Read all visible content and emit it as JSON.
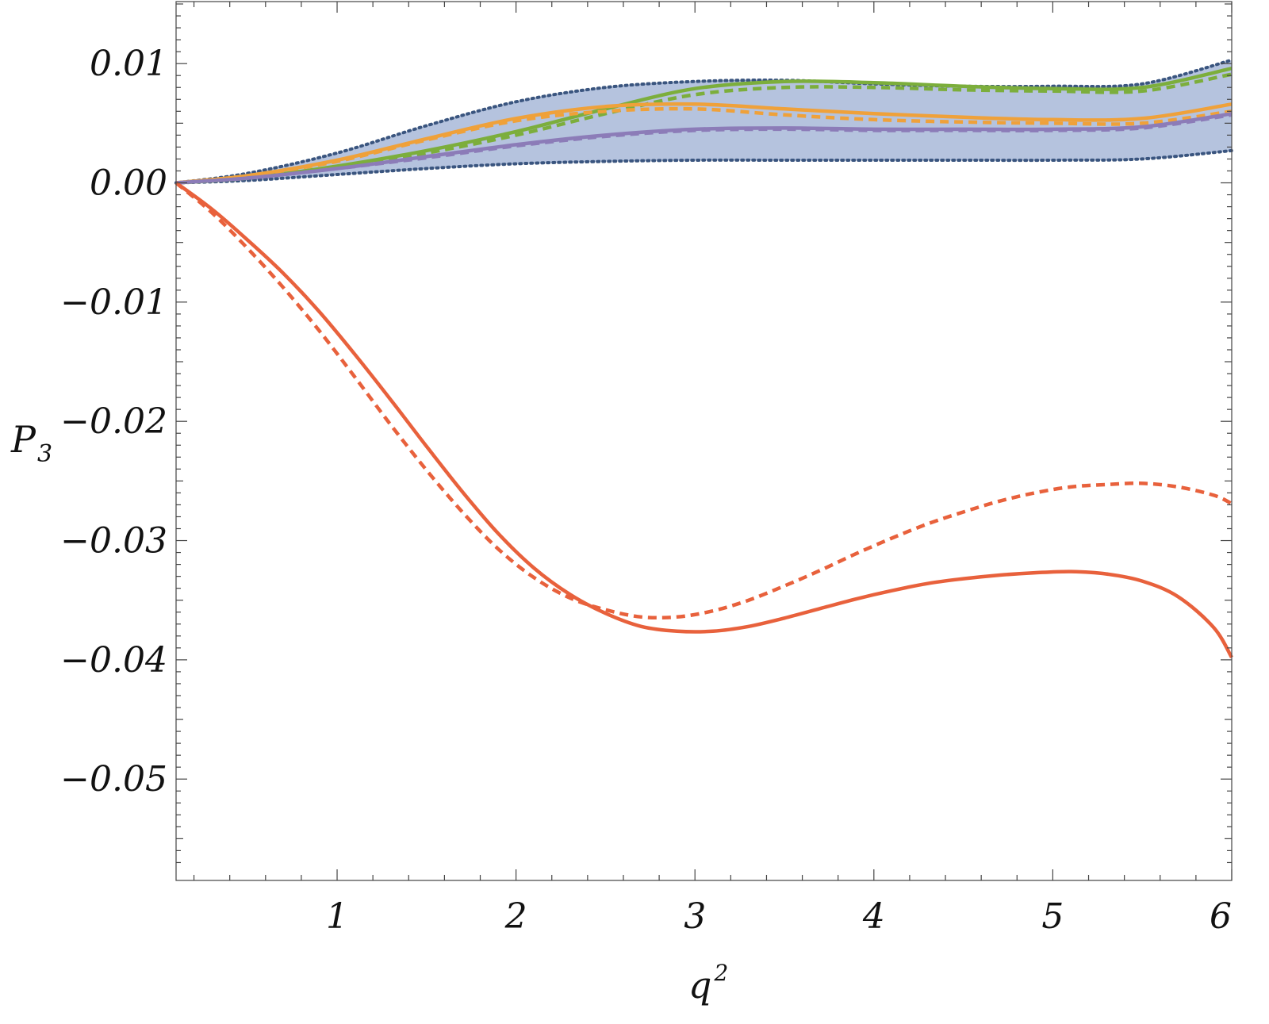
{
  "chart_data": {
    "type": "line",
    "xlabel": "q",
    "xlabel_sup": "2",
    "ylabel": "P",
    "ylabel_sub": "3",
    "xlim": [
      0.1,
      6.0
    ],
    "ylim": [
      -0.0585,
      0.0152
    ],
    "x_ticks": [
      1,
      2,
      3,
      4,
      5,
      6
    ],
    "x_tick_labels": [
      "1",
      "2",
      "3",
      "4",
      "5",
      "6"
    ],
    "y_ticks": [
      0.01,
      0.0,
      -0.01,
      -0.02,
      -0.03,
      -0.04,
      -0.05
    ],
    "y_tick_labels": [
      "0.01",
      "0.00",
      "−0.01",
      "−0.02",
      "−0.03",
      "−0.04",
      "−0.05"
    ],
    "grid": false,
    "band": {
      "color": "#b1c0dc",
      "edge_color": "#3a557f",
      "x": [
        0.1,
        0.5,
        1.0,
        1.5,
        2.0,
        2.5,
        3.0,
        3.5,
        4.0,
        4.5,
        5.0,
        5.5,
        6.0
      ],
      "upper": [
        0.0,
        0.0008,
        0.0025,
        0.0048,
        0.0068,
        0.008,
        0.0085,
        0.0086,
        0.0083,
        0.0081,
        0.0081,
        0.0083,
        0.0103
      ],
      "lower": [
        0.0,
        0.0002,
        0.0007,
        0.0012,
        0.0016,
        0.0018,
        0.0019,
        0.0019,
        0.0019,
        0.0019,
        0.0019,
        0.002,
        0.0027
      ]
    },
    "series": [
      {
        "color": "#7cae3c",
        "dash": "solid",
        "x": [
          0.1,
          0.5,
          1.0,
          1.5,
          2.0,
          2.5,
          3.0,
          3.5,
          4.0,
          4.5,
          5.0,
          5.5,
          6.0
        ],
        "y": [
          0.0,
          0.0004,
          0.0014,
          0.0027,
          0.0043,
          0.0062,
          0.0079,
          0.0085,
          0.0084,
          0.0081,
          0.0079,
          0.008,
          0.0096
        ]
      },
      {
        "color": "#7cae3c",
        "dash": "dashed",
        "x": [
          0.1,
          0.5,
          1.0,
          1.5,
          2.0,
          2.5,
          3.0,
          3.5,
          4.0,
          4.5,
          5.0,
          5.5,
          6.0
        ],
        "y": [
          0.0,
          0.0004,
          0.0013,
          0.0025,
          0.004,
          0.0058,
          0.0074,
          0.008,
          0.008,
          0.0078,
          0.0077,
          0.0077,
          0.0091
        ]
      },
      {
        "color": "#efa13a",
        "dash": "solid",
        "x": [
          0.1,
          0.5,
          1.0,
          1.5,
          2.0,
          2.5,
          3.0,
          3.5,
          4.0,
          4.5,
          5.0,
          5.5,
          6.0
        ],
        "y": [
          0.0,
          0.0006,
          0.0019,
          0.0037,
          0.0054,
          0.0064,
          0.0066,
          0.0062,
          0.0058,
          0.0055,
          0.0053,
          0.0054,
          0.0066
        ]
      },
      {
        "color": "#efa13a",
        "dash": "dashed",
        "x": [
          0.1,
          0.5,
          1.0,
          1.5,
          2.0,
          2.5,
          3.0,
          3.5,
          4.0,
          4.5,
          5.0,
          5.5,
          6.0
        ],
        "y": [
          0.0,
          0.0006,
          0.0018,
          0.0036,
          0.0052,
          0.006,
          0.0062,
          0.0057,
          0.0053,
          0.0051,
          0.005,
          0.005,
          0.006
        ]
      },
      {
        "color": "#8c7cb8",
        "dash": "solid",
        "x": [
          0.1,
          0.5,
          1.0,
          1.5,
          2.0,
          2.5,
          3.0,
          3.5,
          4.0,
          4.5,
          5.0,
          5.5,
          6.0
        ],
        "y": [
          0.0,
          0.0004,
          0.0012,
          0.0022,
          0.0032,
          0.004,
          0.0045,
          0.0046,
          0.0045,
          0.0045,
          0.0045,
          0.0047,
          0.0058
        ]
      },
      {
        "color": "#8c7cb8",
        "dash": "dashed",
        "x": [
          0.1,
          0.5,
          1.0,
          1.5,
          2.0,
          2.5,
          3.0,
          3.5,
          4.0,
          4.5,
          5.0,
          5.5,
          6.0
        ],
        "y": [
          0.0,
          0.0004,
          0.0012,
          0.0021,
          0.0031,
          0.0039,
          0.0044,
          0.0045,
          0.0044,
          0.0044,
          0.0044,
          0.0046,
          0.0057
        ]
      },
      {
        "color": "#e8613c",
        "dash": "solid",
        "x": [
          0.1,
          0.3,
          0.5,
          0.7,
          0.9,
          1.1,
          1.3,
          1.5,
          1.7,
          1.9,
          2.1,
          2.3,
          2.5,
          2.7,
          2.9,
          3.1,
          3.3,
          3.5,
          3.7,
          3.9,
          4.1,
          4.3,
          4.5,
          4.7,
          4.9,
          5.1,
          5.3,
          5.5,
          5.7,
          5.9,
          6.0
        ],
        "y": [
          0.0,
          -0.0022,
          -0.0048,
          -0.0076,
          -0.0108,
          -0.0144,
          -0.0182,
          -0.0221,
          -0.0259,
          -0.0294,
          -0.0323,
          -0.0345,
          -0.0361,
          -0.0372,
          -0.0376,
          -0.0376,
          -0.0372,
          -0.0365,
          -0.0357,
          -0.0349,
          -0.0342,
          -0.0336,
          -0.0332,
          -0.0329,
          -0.0327,
          -0.0326,
          -0.0328,
          -0.0334,
          -0.0347,
          -0.0373,
          -0.0398
        ]
      },
      {
        "color": "#e8613c",
        "dash": "dashed",
        "x": [
          0.1,
          0.3,
          0.5,
          0.7,
          0.9,
          1.1,
          1.3,
          1.5,
          1.7,
          1.9,
          2.1,
          2.3,
          2.5,
          2.7,
          2.9,
          3.1,
          3.3,
          3.5,
          3.7,
          3.9,
          4.1,
          4.3,
          4.5,
          4.7,
          4.9,
          5.1,
          5.3,
          5.5,
          5.7,
          5.9,
          6.0
        ],
        "y": [
          0.0,
          -0.0025,
          -0.0055,
          -0.0088,
          -0.0124,
          -0.0163,
          -0.0203,
          -0.0241,
          -0.0276,
          -0.0307,
          -0.0331,
          -0.0348,
          -0.0358,
          -0.0364,
          -0.0364,
          -0.0359,
          -0.035,
          -0.0338,
          -0.0325,
          -0.0311,
          -0.0298,
          -0.0286,
          -0.0276,
          -0.0267,
          -0.026,
          -0.0255,
          -0.0253,
          -0.0252,
          -0.0255,
          -0.0262,
          -0.0269
        ]
      }
    ]
  }
}
